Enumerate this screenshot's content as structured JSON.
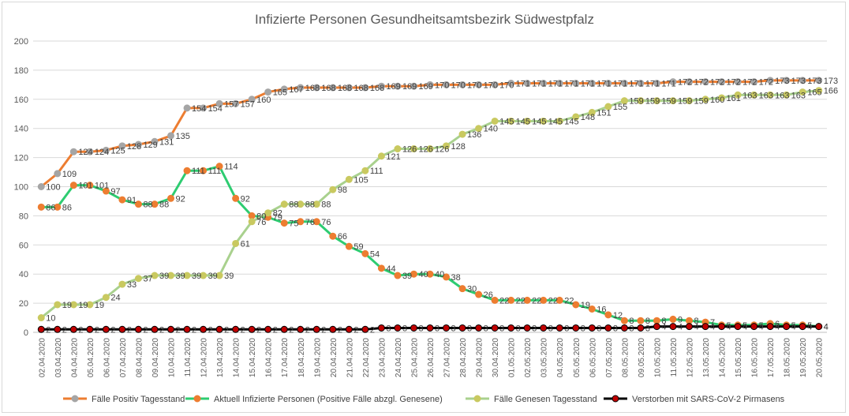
{
  "chart_data": {
    "type": "line",
    "title": "Infizierte Personen Gesundheitsamtsbezirk Südwestpfalz",
    "xlabel": "",
    "ylabel": "",
    "ylim": [
      0,
      200
    ],
    "yticks": [
      0,
      20,
      40,
      60,
      80,
      100,
      120,
      140,
      160,
      180,
      200
    ],
    "grid": true,
    "legend_position": "bottom",
    "categories": [
      "02.04.2020",
      "03.04.2020",
      "04.04.2020",
      "05.04.2020",
      "06.04.2020",
      "07.04.2020",
      "08.04.2020",
      "09.04.2020",
      "10.04.2020",
      "11.04.2020",
      "12.04.2020",
      "13.04.2020",
      "14.04.2020",
      "15.04.2020",
      "16.04.2020",
      "17.04.2020",
      "18.04.2020",
      "19.04.2020",
      "20.04.2020",
      "21.04.2020",
      "22.04.2020",
      "23.04.2020",
      "24.04.2020",
      "25.04.2020",
      "26.04.2020",
      "27.04.2020",
      "28.04.2020",
      "29.04.2020",
      "30.04.2020",
      "01.05.2020",
      "02.05.2020",
      "03.05.2020",
      "04.05.2020",
      "05.05.2020",
      "06.05.2020",
      "07.05.2020",
      "08.05.2020",
      "09.05.2020",
      "10.05.2020",
      "11.05.2020",
      "12.05.2020",
      "13.05.2020",
      "14.05.2020",
      "15.05.2020",
      "16.05.2020",
      "17.05.2020",
      "18.05.2020",
      "19.05.2020",
      "20.05.2020"
    ],
    "series": [
      {
        "name": "Fälle Positiv Tagesstand",
        "line_color": "#ed7d31",
        "marker_color": "#a5a5a5",
        "values": [
          100,
          109,
          124,
          124,
          125,
          128,
          129,
          131,
          135,
          154,
          154,
          157,
          157,
          160,
          165,
          167,
          168,
          168,
          168,
          168,
          168,
          169,
          169,
          169,
          170,
          170,
          170,
          170,
          170,
          171,
          171,
          171,
          171,
          171,
          171,
          171,
          171,
          171,
          171,
          172,
          172,
          172,
          172,
          172,
          172,
          173,
          173,
          173,
          173
        ],
        "labels": [
          "100",
          "109",
          "124",
          "124",
          "125",
          "128",
          "129",
          "131",
          "135",
          "154",
          "154",
          "157",
          "157",
          "160",
          "165",
          "167",
          "168",
          "168",
          "168",
          "168",
          "168",
          "169",
          "169",
          "169",
          "170",
          "170",
          "170",
          "170",
          "170",
          "171",
          "171",
          "171",
          "171",
          "171",
          "171",
          "171",
          "171",
          "171",
          "171",
          "172",
          "172",
          "172",
          "172",
          "172",
          "172",
          "173",
          "173",
          "173",
          "173"
        ]
      },
      {
        "name": "Aktuell Infizierte Personen (Positive Fälle abzgl. Genesene)",
        "line_color": "#2ecc71",
        "marker_color": "#ed7d31",
        "values": [
          86,
          86,
          101,
          101,
          97,
          91,
          88,
          88,
          92,
          111,
          111,
          114,
          92,
          80,
          79,
          75,
          76,
          76,
          66,
          59,
          54,
          44,
          39,
          40,
          40,
          38,
          30,
          26,
          22,
          22,
          22,
          22,
          22,
          19,
          16,
          12,
          8,
          8,
          8,
          9,
          8,
          7,
          5,
          5,
          5,
          6,
          5,
          5,
          4
        ],
        "labels": [
          "86",
          "86",
          "101",
          "101",
          "97",
          "91",
          "88",
          "88",
          "92",
          "111",
          "111",
          "114",
          "92",
          "80",
          "79",
          "75",
          "76",
          "76",
          "66",
          "59",
          "54",
          "44",
          "39",
          "40",
          "40",
          "38",
          "30",
          "26",
          "22",
          "22",
          "22",
          "22",
          "22",
          "19",
          "16",
          "12",
          "8",
          "8",
          "8",
          "9",
          "8",
          "7",
          "5",
          "5",
          "5",
          "6",
          "5",
          "5",
          "4"
        ]
      },
      {
        "name": "Fälle Genesen Tagesstand",
        "line_color": "#a9d18e",
        "marker_color": "#c9c960",
        "values": [
          10,
          19,
          19,
          19,
          24,
          33,
          37,
          39,
          39,
          39,
          39,
          39,
          61,
          76,
          82,
          88,
          88,
          88,
          98,
          105,
          111,
          121,
          126,
          126,
          126,
          128,
          136,
          140,
          145,
          145,
          145,
          145,
          145,
          148,
          151,
          155,
          159,
          159,
          159,
          159,
          159,
          160,
          161,
          163,
          163,
          163,
          163,
          165,
          166
        ],
        "labels": [
          "10",
          "19",
          "19",
          "19",
          "24",
          "33",
          "37",
          "39",
          "39",
          "39",
          "39",
          "39",
          "61",
          "76",
          "82",
          "88",
          "88",
          "88",
          "98",
          "105",
          "111",
          "121",
          "126",
          "126",
          "126",
          "128",
          "136",
          "140",
          "145",
          "145",
          "145",
          "145",
          "145",
          "148",
          "151",
          "155",
          "159",
          "159",
          "159",
          "159",
          "159",
          "160",
          "161",
          "163",
          "163",
          "163",
          "163",
          "165",
          "166"
        ]
      },
      {
        "name": "Verstorben mit SARS-CoV-2 Pirmasens",
        "line_color": "#000000",
        "marker_color": "#c00000",
        "values": [
          2,
          2,
          2,
          2,
          2,
          2,
          2,
          2,
          2,
          2,
          2,
          2,
          2,
          2,
          2,
          2,
          2,
          2,
          2,
          2,
          2,
          3,
          3,
          3,
          3,
          3,
          3,
          3,
          3,
          3,
          3,
          3,
          3,
          3,
          3,
          3,
          3,
          3,
          4,
          4,
          4,
          4,
          4,
          4,
          4,
          4,
          4,
          4,
          4
        ],
        "labels": [
          "2",
          "2",
          "2",
          "2",
          "2",
          "2",
          "2",
          "2",
          "2",
          "2",
          "2",
          "2",
          "2",
          "2",
          "2",
          "2",
          "2",
          "2",
          "2",
          "2",
          "2",
          "3",
          "3",
          "3",
          "3",
          "3",
          "3",
          "3",
          "3",
          "3",
          "3",
          "3",
          "3",
          "3",
          "3",
          "3",
          "3",
          "3",
          "4",
          "4",
          "4",
          "4",
          "4",
          "4",
          "4",
          "4",
          "4",
          "4",
          "4"
        ]
      }
    ]
  }
}
